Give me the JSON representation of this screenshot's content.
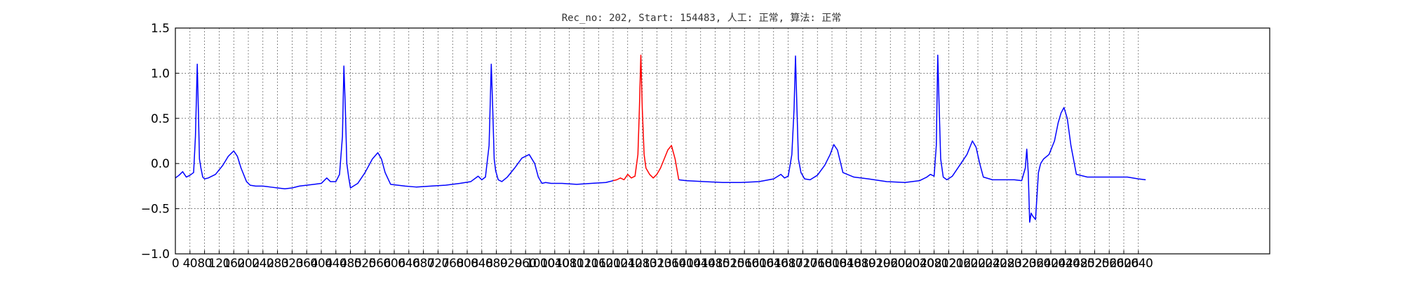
{
  "chart_data": {
    "type": "line",
    "title": "Rec_no: 202, Start: 154483, 人工: 正常, 算法: 正常",
    "xlabel": "",
    "ylabel": "",
    "xlim": [
      0,
      3000
    ],
    "ylim": [
      -1.0,
      1.5
    ],
    "grid": true,
    "grid_style": "dotted",
    "y_ticks": [
      -1.0,
      -0.5,
      0.0,
      0.5,
      1.0,
      1.5
    ],
    "y_tick_labels": [
      "−1.0",
      "−0.5",
      "0.0",
      "0.5",
      "1.0",
      "1.5"
    ],
    "x_ticks": [
      0,
      40,
      80,
      120,
      160,
      200,
      240,
      280,
      320,
      360,
      400,
      440,
      480,
      520,
      560,
      600,
      640,
      680,
      720,
      760,
      800,
      840,
      880,
      920,
      960,
      1000,
      1040,
      1080,
      1120,
      1160,
      1200,
      1240,
      1280,
      1320,
      1360,
      1400,
      1440,
      1480,
      1520,
      1560,
      1600,
      1640,
      1680,
      1720,
      1760,
      1800,
      1840,
      1880,
      1920,
      1960,
      2000,
      2040,
      2080,
      2120,
      2160,
      2200,
      2240,
      2280,
      2320,
      2360,
      2400,
      2440,
      2480,
      2520,
      2560,
      2600,
      2640
    ],
    "series": [
      {
        "color": "#0000ff",
        "x": [
          0,
          10,
          20,
          30,
          40,
          50,
          55,
          60,
          63,
          66,
          70,
          75,
          80,
          90,
          110,
          130,
          145,
          160,
          170,
          180,
          195,
          205,
          220,
          240,
          260,
          280,
          300,
          320,
          340,
          360,
          380,
          400,
          415,
          425,
          440,
          450,
          458,
          462,
          466,
          470,
          475,
          480,
          500,
          520,
          540,
          555,
          565,
          575,
          590,
          610,
          630,
          660,
          700,
          740,
          780,
          810,
          830,
          840,
          850,
          860,
          866,
          870,
          874,
          878,
          885,
          895,
          910,
          930,
          950,
          970,
          985,
          995,
          1005,
          1015,
          1030,
          1060,
          1100,
          1140,
          1180,
          1200
        ],
        "y": [
          -0.16,
          -0.13,
          -0.09,
          -0.15,
          -0.13,
          -0.1,
          0.3,
          1.1,
          0.6,
          0.05,
          -0.05,
          -0.15,
          -0.17,
          -0.16,
          -0.12,
          -0.02,
          0.08,
          0.14,
          0.08,
          -0.05,
          -0.2,
          -0.24,
          -0.25,
          -0.25,
          -0.26,
          -0.27,
          -0.28,
          -0.27,
          -0.25,
          -0.24,
          -0.23,
          -0.22,
          -0.16,
          -0.2,
          -0.2,
          -0.12,
          0.3,
          1.08,
          0.6,
          0.0,
          -0.15,
          -0.27,
          -0.22,
          -0.1,
          0.05,
          0.12,
          0.05,
          -0.1,
          -0.23,
          -0.24,
          -0.25,
          -0.26,
          -0.25,
          -0.24,
          -0.22,
          -0.2,
          -0.14,
          -0.18,
          -0.15,
          0.2,
          1.1,
          0.6,
          0.05,
          -0.08,
          -0.18,
          -0.2,
          -0.15,
          -0.05,
          0.06,
          0.1,
          0.0,
          -0.15,
          -0.22,
          -0.21,
          -0.22,
          -0.22,
          -0.23,
          -0.22,
          -0.21,
          -0.19
        ]
      },
      {
        "color": "#ff0000",
        "x": [
          1200,
          1210,
          1220,
          1230,
          1240,
          1250,
          1260,
          1268,
          1272,
          1276,
          1280,
          1285,
          1290,
          1300,
          1310,
          1320,
          1330,
          1340,
          1350,
          1360,
          1370,
          1380
        ],
        "y": [
          -0.19,
          -0.18,
          -0.16,
          -0.18,
          -0.12,
          -0.16,
          -0.14,
          0.1,
          0.6,
          1.2,
          0.6,
          0.1,
          -0.05,
          -0.12,
          -0.16,
          -0.12,
          -0.05,
          0.05,
          0.15,
          0.2,
          0.05,
          -0.18
        ]
      },
      {
        "color": "#0000ff",
        "x": [
          1380,
          1400,
          1450,
          1500,
          1550,
          1600,
          1640,
          1660,
          1670,
          1680,
          1690,
          1696,
          1700,
          1704,
          1708,
          1715,
          1725,
          1740,
          1760,
          1780,
          1795,
          1805,
          1815,
          1830,
          1860,
          1900,
          1950,
          2000,
          2040,
          2060,
          2070,
          2080,
          2086,
          2090,
          2094,
          2098,
          2105,
          2115,
          2130,
          2150,
          2170,
          2185,
          2195,
          2205,
          2215,
          2240,
          2270,
          2300,
          2320,
          2330,
          2334,
          2338,
          2342,
          2346,
          2350,
          2358,
          2366,
          2372,
          2380,
          2395,
          2410,
          2420,
          2428,
          2436,
          2445,
          2455,
          2470,
          2500,
          2540,
          2580,
          2610,
          2640,
          2660
        ],
        "y": [
          -0.18,
          -0.19,
          -0.2,
          -0.21,
          -0.21,
          -0.2,
          -0.17,
          -0.12,
          -0.16,
          -0.14,
          0.1,
          0.6,
          1.19,
          0.6,
          0.05,
          -0.1,
          -0.17,
          -0.18,
          -0.13,
          -0.02,
          0.1,
          0.21,
          0.15,
          -0.1,
          -0.15,
          -0.17,
          -0.2,
          -0.21,
          -0.19,
          -0.15,
          -0.12,
          -0.14,
          0.2,
          1.2,
          0.6,
          0.05,
          -0.15,
          -0.18,
          -0.14,
          -0.02,
          0.1,
          0.25,
          0.18,
          0.0,
          -0.15,
          -0.18,
          -0.18,
          -0.18,
          -0.19,
          -0.05,
          0.16,
          -0.1,
          -0.65,
          -0.55,
          -0.58,
          -0.62,
          -0.1,
          0.0,
          0.05,
          0.1,
          0.25,
          0.45,
          0.56,
          0.62,
          0.5,
          0.2,
          -0.12,
          -0.15,
          -0.15,
          -0.15,
          -0.15,
          -0.17,
          -0.18
        ]
      }
    ]
  }
}
